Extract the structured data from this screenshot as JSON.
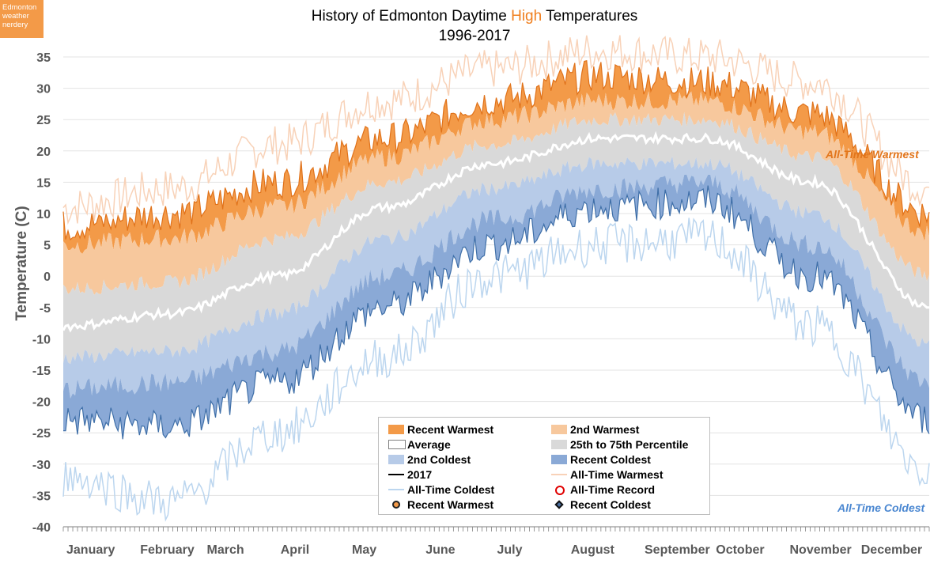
{
  "badge": {
    "line1": "Edmonton",
    "line2": "weather",
    "line3": "nerdery"
  },
  "title": {
    "line1_a": "History of Edmonton Daytime ",
    "line1_b": "High",
    "line1_c": " Temperatures",
    "line2": "1996-2017"
  },
  "colors": {
    "recent_warmest": "#f39a48",
    "second_warmest": "#f7c89d",
    "percentile": "#d9d9d9",
    "average": "#ffffff",
    "second_coldest": "#b7cbe8",
    "recent_coldest": "#8aa9d6",
    "line_2017": "#000000",
    "all_time_warmest": "#f8d2b8",
    "all_time_coldest": "#bcd6ef",
    "warmest_annot": "#e2761c",
    "coldest_annot": "#4a87d1"
  },
  "annotations": {
    "warmest": "All-Time Warmest",
    "coldest": "All-Time Coldest"
  },
  "legend": [
    {
      "label": "Recent Warmest",
      "icon": "swatch-orange"
    },
    {
      "label": "2nd Warmest",
      "icon": "swatch-light-orange"
    },
    {
      "label": "Average",
      "icon": "swatch-white-box"
    },
    {
      "label": "25th to 75th Percentile",
      "icon": "swatch-grey"
    },
    {
      "label": "2nd Coldest",
      "icon": "swatch-light-blue"
    },
    {
      "label": "Recent Coldest",
      "icon": "swatch-blue"
    },
    {
      "label": "2017",
      "icon": "line-black"
    },
    {
      "label": "All-Time Warmest",
      "icon": "line-light-orange"
    },
    {
      "label": "All-Time Coldest",
      "icon": "line-light-blue"
    },
    {
      "label": "All-Time Record",
      "icon": "ring-red"
    },
    {
      "label": "Recent Warmest",
      "icon": "dot-orange"
    },
    {
      "label": "Recent Coldest",
      "icon": "diamond-blue"
    }
  ],
  "chart_data": {
    "type": "area",
    "title": "History of Edmonton Daytime High Temperatures 1996-2017",
    "ylabel": "Temperature (C)",
    "xlabel": "",
    "ylim": [
      -40,
      35
    ],
    "yticks": [
      35,
      30,
      25,
      20,
      15,
      10,
      5,
      0,
      -5,
      -10,
      -15,
      -20,
      -25,
      -30,
      -35,
      -40
    ],
    "months": [
      "January",
      "February",
      "March",
      "April",
      "May",
      "June",
      "July",
      "August",
      "September",
      "October",
      "November",
      "December"
    ],
    "x": [
      1,
      46,
      91,
      136,
      181,
      226,
      271,
      316,
      365
    ],
    "x_unit": "day of year",
    "series": [
      {
        "name": "All-Time Warmest",
        "values": [
          11,
          14,
          21,
          28,
          33,
          36,
          35,
          31,
          14
        ]
      },
      {
        "name": "Recent Warmest",
        "values": [
          8,
          10,
          15,
          22,
          28,
          32,
          31,
          26,
          10
        ]
      },
      {
        "name": "2nd Warmest",
        "values": [
          5,
          6,
          11,
          19,
          25,
          28,
          28,
          23,
          7
        ]
      },
      {
        "name": "25th to 75th Percentile",
        "values": [
          -2,
          -1,
          6,
          15,
          21,
          25,
          25,
          19,
          0
        ]
      },
      {
        "name": "Average",
        "values": [
          -8,
          -6,
          0,
          11,
          18,
          22,
          22,
          15,
          -5
        ]
      },
      {
        "name": "25th to 75th Percentile",
        "values": [
          -13,
          -12,
          -6,
          6,
          14,
          18,
          18,
          10,
          -11
        ]
      },
      {
        "name": "2nd Coldest",
        "values": [
          -18,
          -17,
          -12,
          0,
          9,
          14,
          15,
          5,
          -17
        ]
      },
      {
        "name": "Recent Coldest",
        "values": [
          -23,
          -24,
          -17,
          -5,
          5,
          11,
          12,
          0,
          -23
        ]
      },
      {
        "name": "All-Time Coldest",
        "values": [
          -32,
          -36,
          -25,
          -13,
          0,
          5,
          6,
          -8,
          -31
        ]
      }
    ]
  }
}
